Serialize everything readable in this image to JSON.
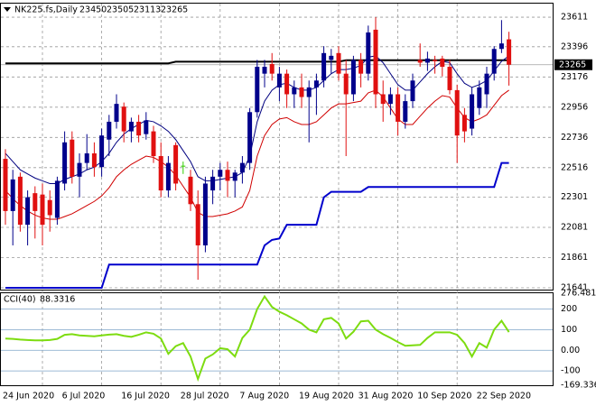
{
  "chart_data": [
    {
      "type": "candlestick",
      "title": "NK225.fs,Daily",
      "categories": [
        "24 Jun 2020",
        null,
        null,
        null,
        null,
        null,
        null,
        null,
        "6 Jul 2020",
        null,
        null,
        null,
        null,
        null,
        null,
        null,
        "16 Jul 2020",
        null,
        null,
        null,
        null,
        null,
        null,
        null,
        "28 Jul 2020",
        null,
        null,
        null,
        null,
        null,
        null,
        null,
        "7 Aug 2020",
        null,
        null,
        null,
        null,
        null,
        null,
        null,
        "19 Aug 2020",
        null,
        null,
        null,
        null,
        null,
        null,
        null,
        "31 Aug 2020",
        null,
        null,
        null,
        null,
        null,
        null,
        null,
        "10 Sep 2020",
        null,
        null,
        null,
        null,
        null,
        null,
        null,
        "22 Sep 2020",
        null,
        null,
        null,
        null
      ],
      "open": [
        22580,
        22200,
        22450,
        22100,
        22330,
        22320,
        22280,
        22150,
        22400,
        22720,
        22450,
        22550,
        22620,
        22520,
        22720,
        22850,
        22960,
        22780,
        22850,
        22760,
        22780,
        22600,
        22350,
        22680,
        22530,
        22450,
        22250,
        21950,
        22350,
        22450,
        22500,
        22420,
        22480,
        22550,
        22920,
        23200,
        23270,
        23100,
        23200,
        23050,
        23100,
        23030,
        23100,
        23150,
        23300,
        23350,
        23200,
        23050,
        23300,
        23200,
        23520,
        23050,
        22980,
        23050,
        22850,
        23000,
        23300,
        23280,
        23300,
        23310,
        23250,
        23080,
        22900,
        22800,
        22950,
        23050,
        23200,
        23380,
        23450
      ],
      "high": [
        22650,
        22500,
        22480,
        22350,
        22380,
        22400,
        22350,
        22450,
        22780,
        22780,
        22620,
        22760,
        22700,
        22800,
        22900,
        23050,
        22990,
        22880,
        22900,
        22920,
        22820,
        22700,
        22600,
        22700,
        22560,
        22500,
        22350,
        22450,
        22500,
        22550,
        22560,
        22500,
        22600,
        22950,
        23300,
        23300,
        23350,
        23250,
        23230,
        23150,
        23200,
        23150,
        23200,
        23400,
        23380,
        23400,
        23300,
        23330,
        23350,
        23550,
        23611,
        23150,
        23100,
        23100,
        23050,
        23200,
        23420,
        23360,
        23330,
        23330,
        23300,
        23120,
        22950,
        23100,
        23150,
        23250,
        23400,
        23590,
        23505
      ],
      "low": [
        22100,
        21950,
        22050,
        21950,
        22000,
        21950,
        22050,
        22100,
        22350,
        22400,
        22300,
        22500,
        22450,
        22450,
        22600,
        22800,
        22700,
        22700,
        22700,
        22720,
        22550,
        22300,
        22300,
        22350,
        22470,
        22200,
        21700,
        21900,
        22250,
        22350,
        22300,
        22300,
        22400,
        22500,
        22880,
        23100,
        23150,
        23000,
        22950,
        22950,
        22950,
        22700,
        22900,
        23100,
        23200,
        23150,
        22600,
        23000,
        23100,
        23150,
        22950,
        22850,
        22900,
        22750,
        22800,
        22950,
        23250,
        23220,
        23200,
        23180,
        23050,
        22550,
        22700,
        22750,
        22900,
        22950,
        23150,
        23350,
        23113
      ],
      "close": [
        22200,
        22430,
        22100,
        22300,
        22200,
        22100,
        22170,
        22420,
        22700,
        22450,
        22550,
        22620,
        22520,
        22750,
        22850,
        22980,
        22780,
        22850,
        22750,
        22860,
        22600,
        22350,
        22550,
        22400,
        22530,
        22250,
        21950,
        22400,
        22450,
        22500,
        22420,
        22480,
        22550,
        22920,
        23250,
        23250,
        23200,
        23200,
        23050,
        23100,
        23030,
        23100,
        23150,
        23350,
        23330,
        23200,
        23050,
        23300,
        23200,
        23500,
        23050,
        22980,
        23050,
        22850,
        23000,
        23150,
        23280,
        23310,
        23290,
        23250,
        23080,
        22750,
        22780,
        23050,
        23100,
        23200,
        23380,
        23420,
        23265
      ],
      "up_color": "#00008b",
      "down_color": "#e01010",
      "doji_color": "#33cc00",
      "lines": [
        {
          "color": "#000000",
          "width": 2,
          "values": [
            23275,
            23275,
            23275,
            23275,
            23275,
            23275,
            23275,
            23275,
            23275,
            23275,
            23275,
            23275,
            23275,
            23275,
            23275,
            23275,
            23275,
            23275,
            23275,
            23275,
            23275,
            23275,
            23275,
            23287,
            23287,
            23287,
            23287,
            23287,
            23287,
            23287,
            23287,
            23287,
            23287,
            23287,
            23287,
            23287,
            23287,
            23287,
            23287,
            23287,
            23287,
            23287,
            23287,
            23287,
            23287,
            23287,
            23298,
            23298,
            23298,
            23298,
            23298,
            23298,
            23298,
            23298,
            23298,
            23298,
            23298,
            23298,
            23298,
            23298,
            23298,
            23298,
            23298,
            23298,
            23298,
            23298,
            23298,
            23298,
            23298
          ]
        },
        {
          "color": "#000080",
          "width": 1,
          "values": [
            22620,
            22560,
            22500,
            22470,
            22440,
            22420,
            22400,
            22400,
            22430,
            22450,
            22470,
            22500,
            22520,
            22560,
            22620,
            22700,
            22760,
            22800,
            22830,
            22860,
            22850,
            22820,
            22780,
            22720,
            22640,
            22560,
            22450,
            22420,
            22420,
            22430,
            22440,
            22450,
            22480,
            22600,
            22850,
            23000,
            23080,
            23120,
            23130,
            23100,
            23080,
            23080,
            23100,
            23150,
            23200,
            23230,
            23230,
            23240,
            23260,
            23320,
            23330,
            23280,
            23200,
            23120,
            23080,
            23080,
            23140,
            23200,
            23250,
            23290,
            23280,
            23200,
            23130,
            23100,
            23120,
            23150,
            23220,
            23290,
            23330
          ]
        },
        {
          "color": "#d00000",
          "width": 1,
          "values": [
            22350,
            22290,
            22240,
            22200,
            22170,
            22150,
            22140,
            22140,
            22160,
            22180,
            22210,
            22240,
            22270,
            22310,
            22370,
            22450,
            22500,
            22540,
            22570,
            22600,
            22590,
            22560,
            22520,
            22460,
            22380,
            22300,
            22190,
            22160,
            22160,
            22170,
            22180,
            22200,
            22230,
            22350,
            22600,
            22750,
            22830,
            22870,
            22880,
            22850,
            22830,
            22830,
            22850,
            22900,
            22950,
            22980,
            22980,
            22990,
            23000,
            23060,
            23080,
            23030,
            22950,
            22870,
            22830,
            22830,
            22890,
            22950,
            23000,
            23040,
            23030,
            22950,
            22880,
            22850,
            22870,
            22900,
            22970,
            23040,
            23080
          ]
        },
        {
          "color": "#0000cc",
          "width": 2,
          "values": [
            21641,
            21641,
            21641,
            21641,
            21641,
            21641,
            21641,
            21641,
            21641,
            21641,
            21641,
            21641,
            21641,
            21641,
            21810,
            21810,
            21810,
            21810,
            21810,
            21810,
            21810,
            21810,
            21810,
            21810,
            21810,
            21810,
            21810,
            21810,
            21810,
            21810,
            21810,
            21810,
            21810,
            21810,
            21810,
            21950,
            21990,
            22000,
            22100,
            22100,
            22100,
            22100,
            22100,
            22300,
            22340,
            22340,
            22340,
            22340,
            22340,
            22375,
            22375,
            22375,
            22375,
            22375,
            22375,
            22375,
            22375,
            22375,
            22375,
            22375,
            22375,
            22375,
            22375,
            22375,
            22375,
            22375,
            22375,
            22550,
            22550
          ]
        }
      ],
      "ylim": [
        21628,
        23710
      ],
      "yticks": [
        23611,
        23396,
        23176,
        22956,
        22736,
        22516,
        22301,
        22081,
        21861,
        21641
      ],
      "grid": true
    },
    {
      "type": "line",
      "title": "CCI(40)",
      "color": "#7ddc10",
      "values": [
        57,
        55,
        52,
        50,
        48,
        48,
        50,
        55,
        75,
        78,
        72,
        70,
        68,
        72,
        76,
        78,
        70,
        65,
        75,
        87,
        80,
        57,
        -17,
        20,
        35,
        -30,
        -139,
        -40,
        -20,
        10,
        5,
        -30,
        60,
        100,
        200,
        261,
        210,
        187,
        170,
        150,
        130,
        100,
        87,
        150,
        157,
        130,
        57,
        90,
        140,
        143,
        100,
        78,
        60,
        40,
        22,
        24,
        26,
        60,
        87,
        87,
        87,
        75,
        35,
        -30,
        35,
        13,
        100,
        143,
        88.3316
      ],
      "ylim": [
        -169.336,
        276.4817
      ],
      "yticks": [
        276.4817,
        200,
        100,
        {
          "value": 0,
          "label": "0.00"
        },
        -100,
        -169.336
      ]
    }
  ]
}
